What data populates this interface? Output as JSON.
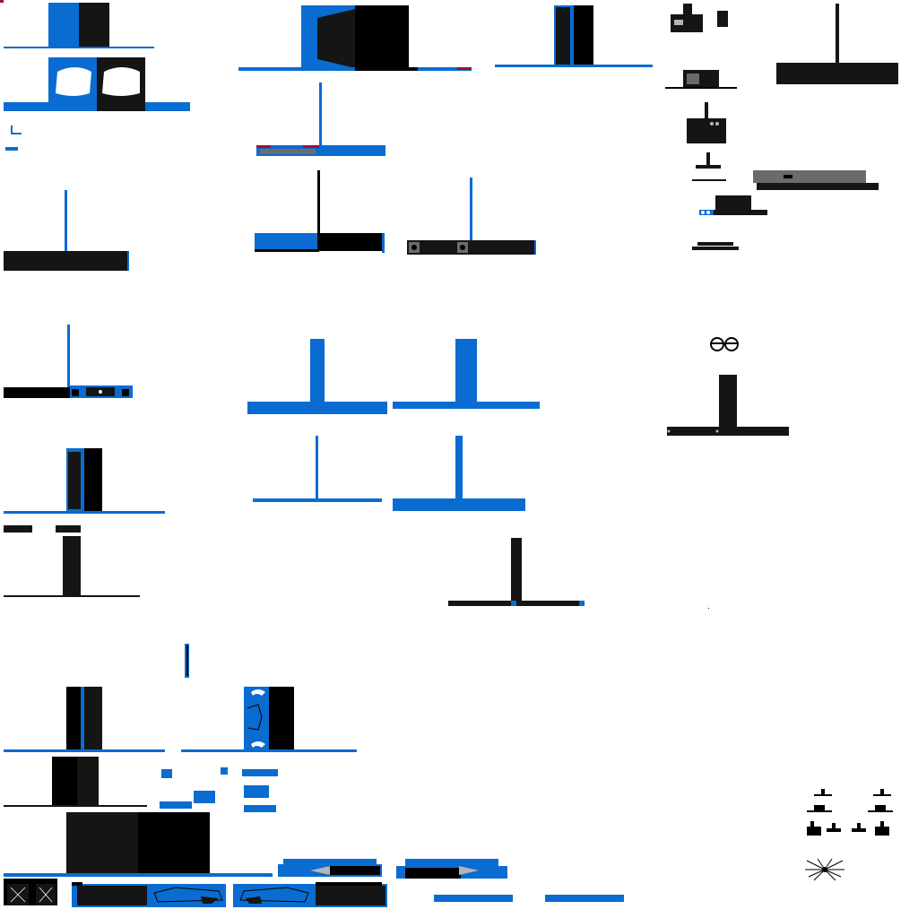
{
  "sheet": {
    "background": "#ffffff",
    "colors": {
      "blue": "#0a6cd0",
      "black": "#000000",
      "dark": "#151515",
      "gray": "#6b6b6b",
      "red": "#9b1235"
    },
    "texts": []
  }
}
